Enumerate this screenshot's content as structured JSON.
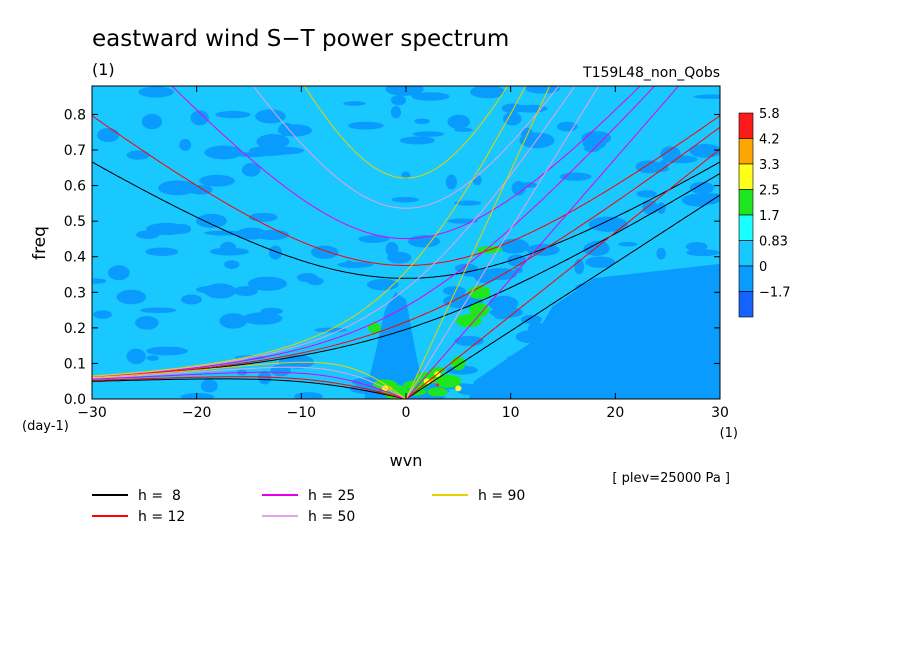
{
  "chart_data": {
    "type": "heatmap",
    "title": "eastward wind S−T power spectrum",
    "subtitle_left": "(1)",
    "subtitle_right": "T159L48_non_Qobs",
    "xlabel": "wvn",
    "ylabel": "freq",
    "x_unit": "(1)",
    "y_unit": "(day-1)",
    "note": "[ plev=25000 Pa ]",
    "xlim": [
      -30,
      30
    ],
    "ylim": [
      0,
      0.88
    ],
    "xticks": [
      -30,
      -20,
      -10,
      0,
      10,
      20,
      30
    ],
    "xtick_labels": [
      "−30",
      "−20",
      "−10",
      "0",
      "10",
      "20",
      "30"
    ],
    "yticks": [
      0.0,
      0.1,
      0.2,
      0.3,
      0.4,
      0.5,
      0.6,
      0.7,
      0.8
    ],
    "ytick_labels": [
      "0.0",
      "0.1",
      "0.2",
      "0.3",
      "0.4",
      "0.5",
      "0.6",
      "0.7",
      "0.8"
    ],
    "colorbar": {
      "labels": [
        "5.8",
        "4.2",
        "3.3",
        "2.5",
        "1.7",
        "0.83",
        "0",
        "−1.7"
      ],
      "colors": [
        "#ff1a1a",
        "#ffa500",
        "#ffff19",
        "#1ee61e",
        "#19ffff",
        "#19c8ff",
        "#0a9bff",
        "#1463ff"
      ]
    },
    "background_level": "0.83",
    "field_colors": {
      "low": "#0a9bff",
      "mid": "#19c8ff",
      "high": "#1ee61e",
      "higher": "#ffff19",
      "peak": "#ffa500",
      "max": "#ff1a1a"
    },
    "series": [
      {
        "name": "h =  8",
        "h": 8,
        "color": "#000000"
      },
      {
        "name": "h = 12",
        "h": 12,
        "color": "#ff0000"
      },
      {
        "name": "h = 25",
        "h": 25,
        "color": "#e600e6"
      },
      {
        "name": "h = 50",
        "h": 50,
        "color": "#e6a0e6"
      },
      {
        "name": "h = 90",
        "h": 90,
        "color": "#e6d200"
      }
    ]
  }
}
